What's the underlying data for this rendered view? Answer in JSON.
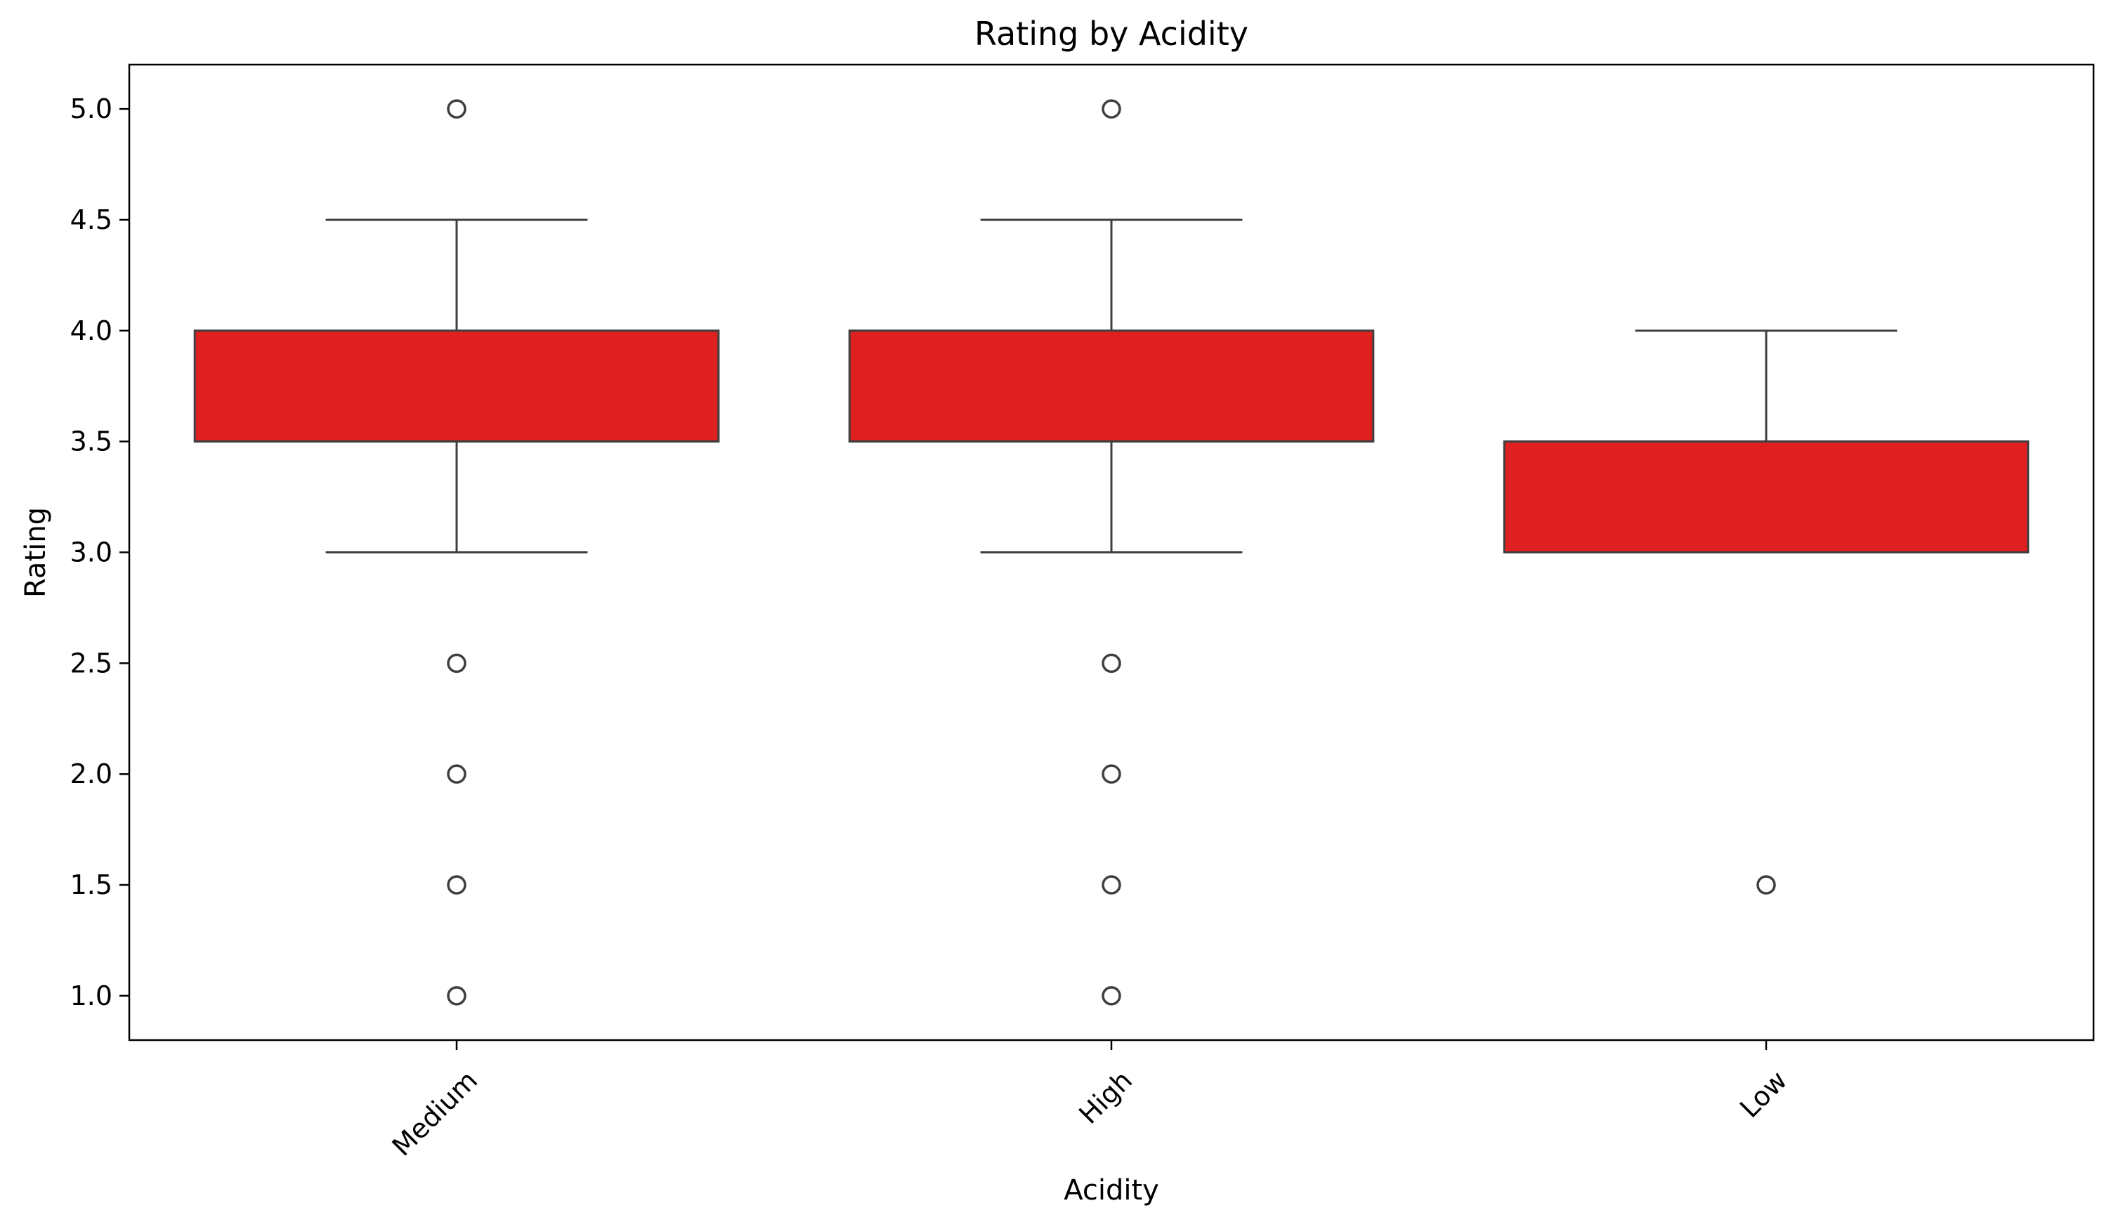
{
  "chart_data": {
    "type": "box",
    "title": "Rating by Acidity",
    "xlabel": "Acidity",
    "ylabel": "Rating",
    "ylim": [
      0.8,
      5.2
    ],
    "yticks": [
      1.0,
      1.5,
      2.0,
      2.5,
      3.0,
      3.5,
      4.0,
      4.5,
      5.0
    ],
    "ytick_labels": [
      "1.0",
      "1.5",
      "2.0",
      "2.5",
      "3.0",
      "3.5",
      "4.0",
      "4.5",
      "5.0"
    ],
    "categories": [
      "Medium",
      "High",
      "Low"
    ],
    "x_tick_rotation": 45,
    "grid": false,
    "box_color": "#df2020",
    "edge_color": "#3f3f3f",
    "boxes": [
      {
        "category": "Medium",
        "whisker_low": 3.0,
        "q1": 3.5,
        "median": 3.5,
        "q3": 4.0,
        "whisker_high": 4.5,
        "outliers": [
          5.0,
          2.5,
          2.0,
          1.5,
          1.0
        ]
      },
      {
        "category": "High",
        "whisker_low": 3.0,
        "q1": 3.5,
        "median": 3.5,
        "q3": 4.0,
        "whisker_high": 4.5,
        "outliers": [
          5.0,
          2.5,
          2.0,
          1.5,
          1.0
        ]
      },
      {
        "category": "Low",
        "whisker_low": 3.0,
        "q1": 3.0,
        "median": 3.0,
        "q3": 3.5,
        "whisker_high": 4.0,
        "outliers": [
          1.5
        ]
      }
    ]
  }
}
